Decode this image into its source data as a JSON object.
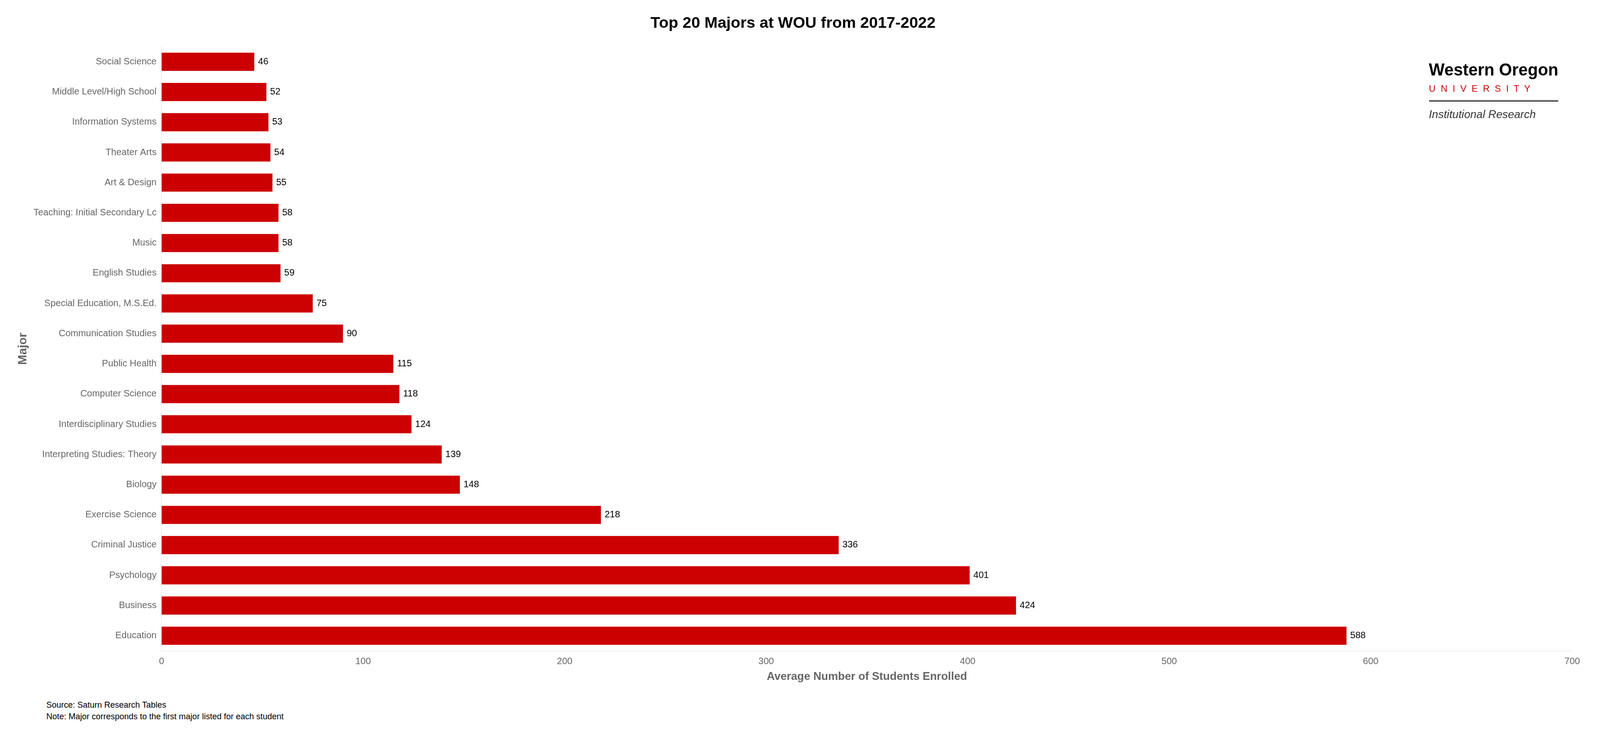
{
  "chart_data": {
    "type": "bar",
    "orientation": "horizontal",
    "title": "Top 20 Majors at WOU from 2017-2022",
    "xlabel": "Average Number of Students Enrolled",
    "ylabel": "Major",
    "categories": [
      "Education",
      "Business",
      "Psychology",
      "Criminal Justice",
      "Exercise Science",
      "Biology",
      "Interpreting Studies: Theory",
      "Interdisciplinary Studies",
      "Computer Science",
      "Public Health",
      "Communication Studies",
      "Special Education, M.S.Ed.",
      "English Studies",
      "Music",
      "Teaching: Initial Secondary Lc",
      "Art & Design",
      "Theater Arts",
      "Information Systems",
      "Middle Level/High School",
      "Social Science"
    ],
    "values": [
      588,
      424,
      401,
      336,
      218,
      148,
      139,
      124,
      118,
      115,
      90,
      75,
      59,
      58,
      58,
      55,
      54,
      53,
      52,
      46
    ],
    "color": "#cc0000",
    "xlim": [
      0,
      700
    ],
    "xticks": [
      0,
      100,
      200,
      300,
      400,
      500,
      600,
      700
    ],
    "grid": false,
    "data_labels": true,
    "annotations": [
      {
        "text": "Source: Saturn Research Tables"
      },
      {
        "text": "Note: Major corresponds to the first major listed for each student"
      },
      {
        "text": "Western Oregon"
      },
      {
        "text": "U  N  I  V  E  R  S  I  T  Y",
        "color": "#cc0000"
      },
      {
        "text": "Institutional Research",
        "color": "#333333"
      }
    ]
  }
}
